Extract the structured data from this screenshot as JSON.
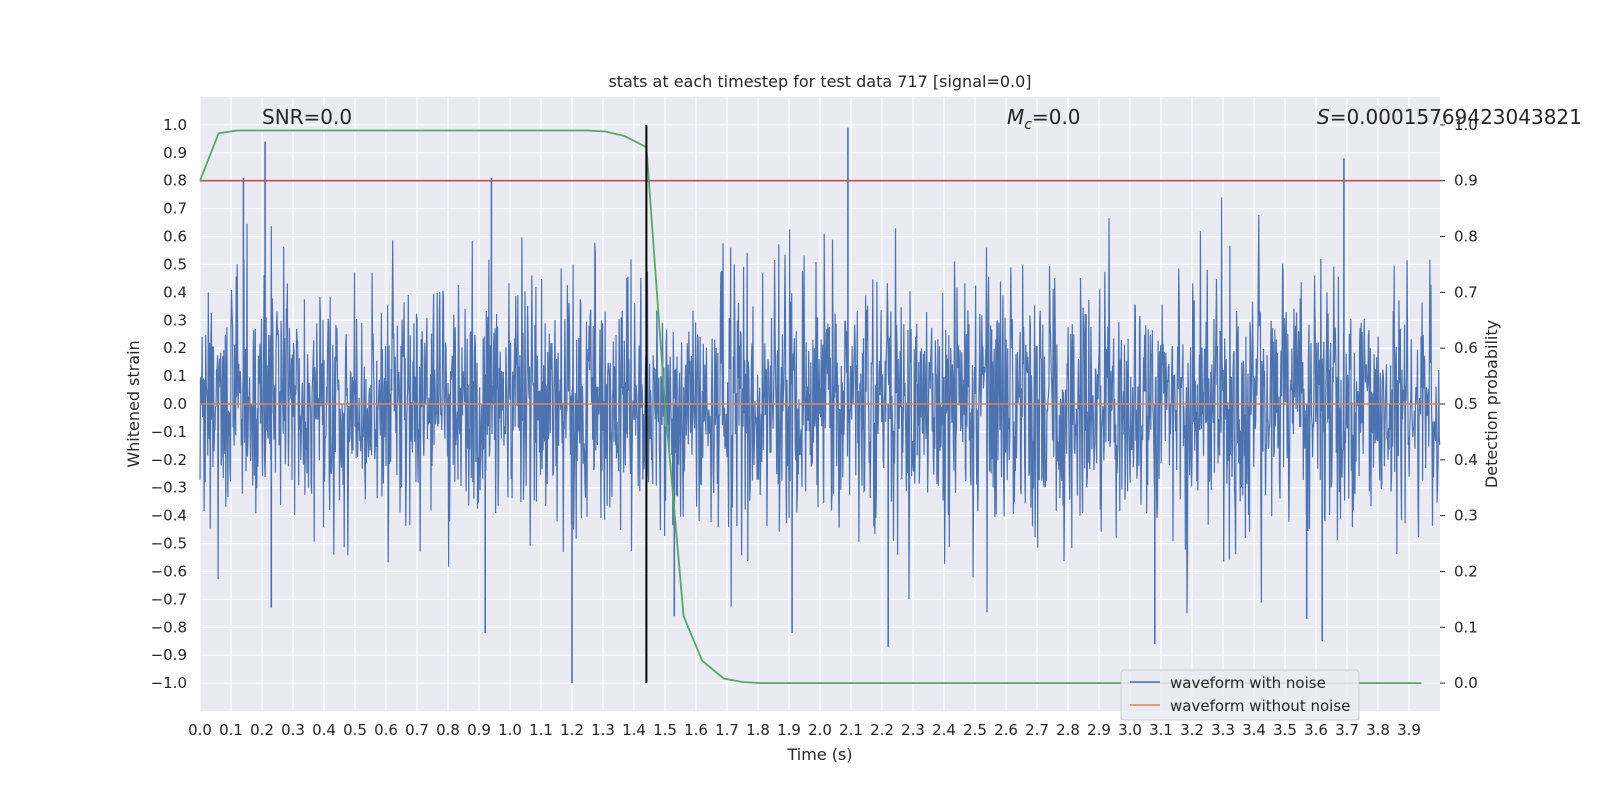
{
  "chart_data": {
    "type": "line",
    "title": "stats at each timestep for test data 717 [signal=0.0]",
    "xlabel": "Time (s)",
    "ylabel": "Whitened strain",
    "ylabel_right": "Detection probability",
    "xlim": [
      0.0,
      4.0
    ],
    "ylim": [
      -1.1,
      1.1
    ],
    "ylim_right": [
      -0.05,
      1.05
    ],
    "x_ticks": [
      "0.0",
      "0.1",
      "0.2",
      "0.3",
      "0.4",
      "0.5",
      "0.6",
      "0.7",
      "0.8",
      "0.9",
      "1.0",
      "1.1",
      "1.2",
      "1.3",
      "1.4",
      "1.5",
      "1.6",
      "1.7",
      "1.8",
      "1.9",
      "2.0",
      "2.1",
      "2.2",
      "2.3",
      "2.4",
      "2.5",
      "2.6",
      "2.7",
      "2.8",
      "2.9",
      "3.0",
      "3.1",
      "3.2",
      "3.3",
      "3.4",
      "3.5",
      "3.6",
      "3.7",
      "3.8",
      "3.9"
    ],
    "y_ticks": [
      "1.0",
      "0.9",
      "0.8",
      "0.7",
      "0.6",
      "0.5",
      "0.4",
      "0.3",
      "0.2",
      "0.1",
      "0.0",
      "−0.1",
      "−0.2",
      "−0.3",
      "−0.4",
      "−0.5",
      "−0.6",
      "−0.7",
      "−0.8",
      "−0.9",
      "−1.0"
    ],
    "y_ticks_right": [
      "1.0",
      "0.9",
      "0.8",
      "0.7",
      "0.6",
      "0.5",
      "0.4",
      "0.3",
      "0.2",
      "0.1",
      "0.0"
    ],
    "annotations": {
      "snr": "SNR=0.0",
      "mc_symbol": "M",
      "mc_sub": "c",
      "mc_value": "=0.0",
      "s_symbol": "S",
      "s_value": "=0.00015769423043821"
    },
    "series": [
      {
        "name": "waveform with noise",
        "color": "#4c72b0",
        "style": "dense-noise",
        "range_approx": [
          -1.0,
          0.98
        ],
        "peaks": [
          {
            "x": 0.21,
            "y": 0.94
          },
          {
            "x": 0.14,
            "y": 0.81
          },
          {
            "x": 0.94,
            "y": 0.81
          },
          {
            "x": 2.09,
            "y": 0.99
          },
          {
            "x": 3.69,
            "y": 0.88
          },
          {
            "x": 1.2,
            "y": -1.0
          },
          {
            "x": 2.22,
            "y": -0.87
          },
          {
            "x": 3.08,
            "y": -0.86
          },
          {
            "x": 3.62,
            "y": -0.85
          },
          {
            "x": 0.92,
            "y": -0.82
          },
          {
            "x": 1.91,
            "y": -0.82
          },
          {
            "x": 3.57,
            "y": -0.77
          },
          {
            "x": 1.53,
            "y": -0.76
          },
          {
            "x": 0.23,
            "y": -0.73
          }
        ]
      },
      {
        "name": "waveform without noise",
        "color": "#dd8452",
        "x": [
          0.0,
          4.0
        ],
        "y": [
          0.0,
          0.0
        ]
      },
      {
        "name": "Detection probability",
        "color": "#55a868",
        "axis": "right",
        "x": [
          0.0,
          0.06,
          0.12,
          0.19,
          0.25,
          0.31,
          0.37,
          0.44,
          0.5,
          0.56,
          0.62,
          0.69,
          0.75,
          0.81,
          0.87,
          0.94,
          1.0,
          1.06,
          1.12,
          1.19,
          1.25,
          1.31,
          1.37,
          1.44,
          1.5,
          1.56,
          1.62,
          1.69,
          1.75,
          1.81,
          1.87,
          1.94,
          2.0,
          2.5,
          3.0,
          3.5,
          3.94
        ],
        "y": [
          0.9,
          0.985,
          0.99,
          0.99,
          0.99,
          0.99,
          0.99,
          0.99,
          0.99,
          0.99,
          0.99,
          0.99,
          0.99,
          0.99,
          0.99,
          0.99,
          0.99,
          0.99,
          0.99,
          0.99,
          0.99,
          0.988,
          0.98,
          0.96,
          0.5,
          0.12,
          0.04,
          0.008,
          0.002,
          0.0,
          0.0,
          0.0,
          0.0,
          0.0,
          0.0,
          0.0,
          0.0
        ]
      },
      {
        "name": "threshold",
        "color": "#c44e52",
        "axis": "right",
        "x": [
          0.0,
          4.0
        ],
        "y": [
          0.9,
          0.9
        ]
      }
    ],
    "vline": {
      "x": 1.44,
      "y_range": [
        -1.0,
        1.0
      ],
      "color": "#000000"
    },
    "legend": {
      "position": "lower-right",
      "entries": [
        {
          "label": "waveform with noise",
          "color": "#4c72b0"
        },
        {
          "label": "waveform without noise",
          "color": "#dd8452"
        }
      ]
    },
    "grid": true,
    "background": "#eaeaf2"
  }
}
